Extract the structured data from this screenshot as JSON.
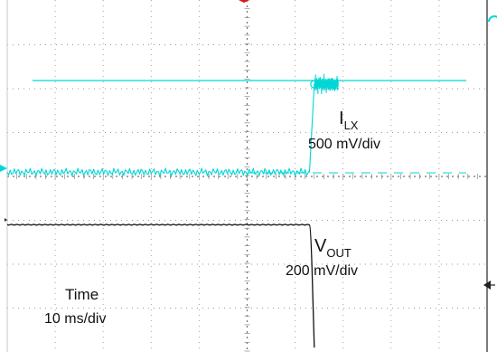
{
  "chart_data": {
    "type": "line",
    "title": "",
    "grid": true,
    "x_axis": {
      "label": "Time",
      "scale_label": "10 ms/div",
      "divisions": 10
    },
    "y_axis": {
      "divisions": 8
    },
    "series": [
      {
        "name": "ILX",
        "color": "#00d6d6",
        "scale_label": "500 mV/div",
        "x_ms": [
          0,
          63,
          64,
          69
        ],
        "y_div": [
          0.1,
          0.1,
          2.1,
          2.1
        ]
      },
      {
        "name": "VOUT",
        "color": "#111111",
        "scale_label": "200 mV/div",
        "x_ms": [
          0,
          63,
          63.6,
          64
        ],
        "y_div": [
          -1.1,
          -1.1,
          -2.4,
          -3.9
        ]
      }
    ],
    "annotations": {
      "ilx_name": "I",
      "ilx_sub": "LX",
      "ilx_scale": "500 mV/div",
      "vout_name": "V",
      "vout_sub": "OUT",
      "vout_scale": "200 mV/div",
      "time_label": "Time",
      "time_scale": "10 ms/div"
    }
  }
}
